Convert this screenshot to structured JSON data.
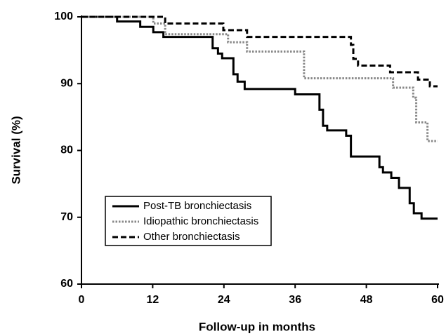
{
  "chart_data": {
    "type": "step",
    "x_label": "Follow-up in months",
    "y_label": "Survival (%)",
    "xlim": [
      0,
      60
    ],
    "ylim": [
      60,
      100
    ],
    "xticks": [
      0,
      12,
      24,
      36,
      48,
      60
    ],
    "yticks": [
      60,
      70,
      80,
      90,
      100
    ],
    "legend": "lower left",
    "series": [
      {
        "name": "Post-TB bronchiectasis",
        "color": "#000000",
        "style": "solid",
        "x": [
          0,
          6.0,
          9.9,
          12.1,
          13.8,
          22.1,
          23.0,
          23.7,
          25.6,
          26.3,
          27.5,
          36.0,
          40.1,
          40.7,
          41.4,
          44.6,
          45.4,
          50.2,
          50.8,
          52.2,
          53.5,
          55.3,
          56.0,
          57.3,
          60
        ],
        "values": [
          100,
          99.3,
          98.5,
          97.7,
          97.0,
          95.3,
          94.5,
          93.8,
          91.4,
          90.3,
          89.2,
          88.4,
          86.1,
          83.7,
          83.0,
          82.2,
          79.1,
          77.5,
          76.7,
          75.9,
          74.4,
          72.1,
          70.6,
          69.8,
          69.8
        ]
      },
      {
        "name": "Idiopathic bronchiectasis",
        "color": "#888888",
        "style": "dotted",
        "x": [
          0,
          12.1,
          14.1,
          24.7,
          27.9,
          37.5,
          52.5,
          55.9,
          56.4,
          58.3,
          60
        ],
        "values": [
          100,
          99.0,
          97.4,
          96.2,
          94.8,
          90.8,
          89.4,
          87.9,
          84.2,
          81.4,
          81.4
        ]
      },
      {
        "name": "Other bronchiectasis",
        "color": "#000000",
        "style": "dashed",
        "x": [
          0,
          14.1,
          23.9,
          27.9,
          45.4,
          45.8,
          46.6,
          52.0,
          56.7,
          58.7,
          60
        ],
        "values": [
          100,
          99.0,
          98.0,
          97.0,
          95.8,
          93.7,
          92.7,
          91.7,
          90.6,
          89.6,
          89.6
        ]
      }
    ]
  }
}
